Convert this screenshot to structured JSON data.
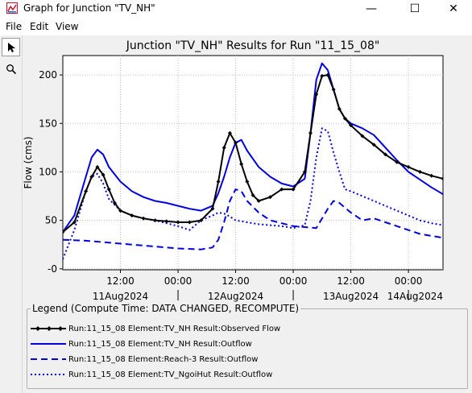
{
  "window": {
    "title": "Graph for Junction \"TV_NH\"",
    "minimize_glyph": "—",
    "maximize_glyph": "☐",
    "close_glyph": "✕"
  },
  "menu": {
    "file": "File",
    "edit": "Edit",
    "view": "View"
  },
  "toolbar": {
    "pointer_icon": "pointer-arrow-icon",
    "zoom_icon": "magnifier-icon"
  },
  "legend": {
    "title": "Legend (Compute Time: DATA CHANGED, RECOMPUTE)",
    "entries": [
      "Run:11_15_08 Element:TV_NH Result:Observed Flow",
      "Run:11_15_08 Element:TV_NH Result:Outflow",
      "Run:11_15_08 Element:Reach-3 Result:Outflow",
      "Run:11_15_08 Element:TV_NgoiHut Result:Outflow"
    ]
  },
  "chart_data": {
    "type": "line",
    "title": "Junction \"TV_NH\" Results for Run \"11_15_08\"",
    "ylabel": "Flow (cms)",
    "xlabel": "",
    "ylim": [
      0,
      220
    ],
    "xlim": [
      0,
      3.3
    ],
    "yticks": [
      0,
      50,
      100,
      150,
      200
    ],
    "ytick_labels": [
      "-0",
      "50",
      "100",
      "150",
      "200"
    ],
    "xticks": [
      {
        "x": 0.5,
        "label": "12:00"
      },
      {
        "x": 1.0,
        "label": "00:00"
      },
      {
        "x": 1.5,
        "label": "12:00"
      },
      {
        "x": 2.0,
        "label": "00:00"
      },
      {
        "x": 2.5,
        "label": "12:00"
      },
      {
        "x": 3.0,
        "label": "00:00"
      },
      {
        "x": 3.5,
        "label": "12:00"
      }
    ],
    "date_labels": [
      {
        "x": 0.5,
        "label": "11Aug2024"
      },
      {
        "x": 1.5,
        "label": "12Aug2024"
      },
      {
        "x": 2.5,
        "label": "13Aug2024"
      },
      {
        "x": 3.5,
        "label": "14Aug2024"
      }
    ],
    "grid": true,
    "legend_position": "bottom",
    "colors": {
      "observed": "#000000",
      "outflow": "#0000e0",
      "reach3": "#0000e0",
      "ngoihut": "#0000e0"
    },
    "series": [
      {
        "name": "Run:11_15_08 Element:TV_NH Result:Observed Flow",
        "style": "solid-markers",
        "x": [
          0.0,
          0.1,
          0.2,
          0.25,
          0.3,
          0.35,
          0.4,
          0.45,
          0.5,
          0.6,
          0.7,
          0.8,
          0.9,
          1.0,
          1.1,
          1.2,
          1.3,
          1.35,
          1.4,
          1.45,
          1.5,
          1.55,
          1.6,
          1.65,
          1.7,
          1.8,
          1.9,
          2.0,
          2.1,
          2.15,
          2.2,
          2.25,
          2.3,
          2.35,
          2.4,
          2.45,
          2.5,
          2.6,
          2.7,
          2.8,
          2.9,
          3.0,
          3.1,
          3.2,
          3.3
        ],
        "y": [
          38,
          48,
          80,
          95,
          105,
          97,
          82,
          68,
          60,
          55,
          52,
          50,
          49,
          48,
          48,
          50,
          62,
          90,
          125,
          140,
          130,
          108,
          90,
          76,
          70,
          74,
          82,
          82,
          100,
          140,
          180,
          199,
          200,
          185,
          165,
          155,
          148,
          137,
          128,
          118,
          110,
          105,
          100,
          96,
          93
        ]
      },
      {
        "name": "Run:11_15_08 Element:TV_NH Result:Outflow",
        "style": "solid",
        "x": [
          0.0,
          0.1,
          0.2,
          0.25,
          0.3,
          0.35,
          0.4,
          0.5,
          0.6,
          0.7,
          0.8,
          0.9,
          1.0,
          1.1,
          1.2,
          1.3,
          1.35,
          1.4,
          1.45,
          1.5,
          1.55,
          1.6,
          1.7,
          1.8,
          1.9,
          2.0,
          2.1,
          2.15,
          2.2,
          2.25,
          2.3,
          2.35,
          2.4,
          2.45,
          2.5,
          2.6,
          2.7,
          2.8,
          2.9,
          3.0,
          3.1,
          3.2,
          3.3
        ],
        "y": [
          38,
          55,
          95,
          115,
          123,
          118,
          105,
          90,
          80,
          74,
          70,
          68,
          65,
          62,
          60,
          65,
          78,
          95,
          115,
          130,
          133,
          122,
          105,
          95,
          88,
          85,
          93,
          140,
          195,
          212,
          205,
          185,
          165,
          155,
          150,
          145,
          138,
          125,
          112,
          100,
          92,
          84,
          77
        ]
      },
      {
        "name": "Run:11_15_08 Element:Reach-3 Result:Outflow",
        "style": "dashed",
        "x": [
          0.0,
          0.2,
          0.4,
          0.6,
          0.8,
          1.0,
          1.2,
          1.3,
          1.35,
          1.4,
          1.45,
          1.5,
          1.55,
          1.6,
          1.7,
          1.8,
          1.9,
          2.0,
          2.1,
          2.2,
          2.3,
          2.35,
          2.4,
          2.5,
          2.6,
          2.7,
          2.8,
          2.9,
          3.0,
          3.1,
          3.2,
          3.3
        ],
        "y": [
          30,
          29,
          27,
          25,
          23,
          21,
          20,
          22,
          30,
          48,
          70,
          82,
          80,
          70,
          58,
          50,
          47,
          44,
          43,
          42,
          62,
          70,
          68,
          58,
          50,
          52,
          48,
          44,
          40,
          36,
          34,
          32
        ]
      },
      {
        "name": "Run:11_15_08 Element:TV_NgoiHut Result:Outflow",
        "style": "dotted",
        "x": [
          0.0,
          0.1,
          0.2,
          0.25,
          0.3,
          0.35,
          0.4,
          0.5,
          0.6,
          0.7,
          0.8,
          0.9,
          1.0,
          1.1,
          1.2,
          1.3,
          1.35,
          1.4,
          1.45,
          1.5,
          1.6,
          1.7,
          1.8,
          1.9,
          2.0,
          2.1,
          2.15,
          2.2,
          2.25,
          2.3,
          2.35,
          2.4,
          2.45,
          2.5,
          2.6,
          2.7,
          2.8,
          2.9,
          3.0,
          3.1,
          3.2,
          3.3
        ],
        "y": [
          10,
          40,
          80,
          95,
          98,
          88,
          72,
          60,
          55,
          52,
          50,
          47,
          44,
          40,
          50,
          55,
          58,
          57,
          54,
          50,
          48,
          46,
          45,
          44,
          42,
          45,
          70,
          115,
          145,
          142,
          120,
          100,
          82,
          80,
          75,
          70,
          65,
          60,
          55,
          50,
          47,
          45
        ]
      }
    ]
  }
}
